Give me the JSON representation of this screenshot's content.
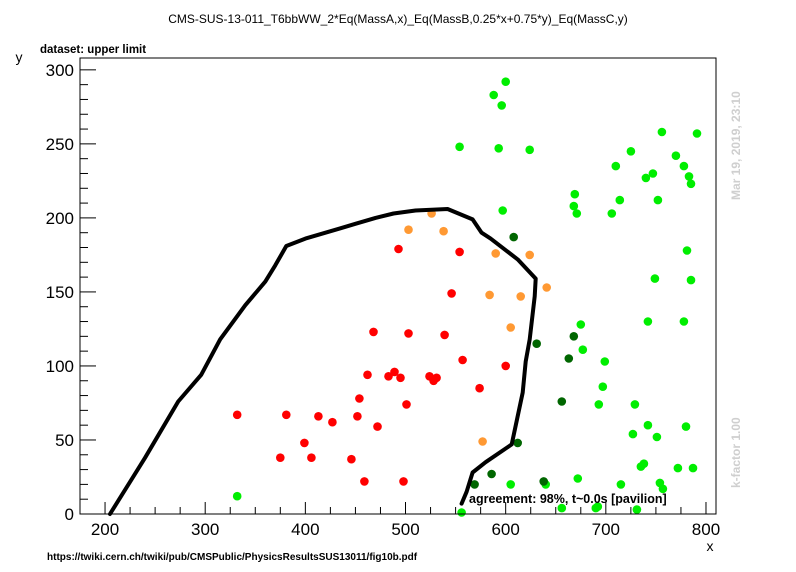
{
  "chart_data": {
    "type": "scatter",
    "title": "CMS-SUS-13-011_T6bbWW_2*Eq(MassA,x)_Eq(MassB,0.25*x+0.75*y)_Eq(MassC,y)",
    "dataset_label": "dataset: upper limit",
    "xlabel": "x",
    "ylabel": "y",
    "xlim": [
      175,
      810
    ],
    "ylim": [
      0,
      308
    ],
    "x_ticks": [
      200,
      300,
      400,
      500,
      600,
      700,
      800
    ],
    "y_ticks": [
      0,
      50,
      100,
      150,
      200,
      250,
      300
    ],
    "grid": false,
    "legend": "none",
    "annotation": "agreement: 98%, t~0.0s [pavilion]",
    "timestamp": "Mar 19, 2019, 23:10",
    "kfactor": "k-factor 1.00",
    "source_url": "https://twiki.cern.ch/twiki/pub/CMSPublic/PhysicsResultsSUS13011/fig10b.pdf",
    "colors": {
      "excluded": "#ff0000",
      "borderline": "#ff9933",
      "allowed": "#00ee00",
      "allowed_near": "#006600",
      "curve": "#000000"
    },
    "series": [
      {
        "color_key": "excluded",
        "points": [
          [
            332,
            67
          ],
          [
            375,
            38
          ],
          [
            381,
            67
          ],
          [
            399,
            48
          ],
          [
            406,
            38
          ],
          [
            413,
            66
          ],
          [
            427,
            62
          ],
          [
            446,
            37
          ],
          [
            452,
            66
          ],
          [
            454,
            78
          ],
          [
            459,
            22
          ],
          [
            462,
            94
          ],
          [
            468,
            123
          ],
          [
            472,
            59
          ],
          [
            483,
            93
          ],
          [
            489,
            96
          ],
          [
            495,
            92
          ],
          [
            498,
            22
          ],
          [
            501,
            74
          ],
          [
            503,
            122
          ],
          [
            493,
            179
          ],
          [
            524,
            93
          ],
          [
            528,
            90
          ],
          [
            531,
            92
          ],
          [
            539,
            121
          ],
          [
            546,
            149
          ],
          [
            554,
            177
          ],
          [
            557,
            104
          ],
          [
            574,
            85
          ],
          [
            600,
            100
          ]
        ]
      },
      {
        "color_key": "borderline",
        "points": [
          [
            526,
            203
          ],
          [
            503,
            192
          ],
          [
            538,
            191
          ],
          [
            590,
            176
          ],
          [
            584,
            148
          ],
          [
            605,
            126
          ],
          [
            615,
            147
          ],
          [
            624,
            175
          ],
          [
            641,
            153
          ],
          [
            577,
            49
          ]
        ]
      },
      {
        "color_key": "allowed",
        "points": [
          [
            332,
            12
          ],
          [
            554,
            248
          ],
          [
            556,
            1
          ],
          [
            588,
            283
          ],
          [
            593,
            247
          ],
          [
            596,
            276
          ],
          [
            600,
            292
          ],
          [
            597,
            205
          ],
          [
            605,
            20
          ],
          [
            624,
            246
          ],
          [
            640,
            20
          ],
          [
            656,
            4
          ],
          [
            668,
            208
          ],
          [
            669,
            216
          ],
          [
            671,
            203
          ],
          [
            672,
            24
          ],
          [
            675,
            128
          ],
          [
            677,
            111
          ],
          [
            690,
            4
          ],
          [
            692,
            5
          ],
          [
            693,
            74
          ],
          [
            697,
            86
          ],
          [
            699,
            103
          ],
          [
            706,
            203
          ],
          [
            710,
            235
          ],
          [
            714,
            212
          ],
          [
            715,
            20
          ],
          [
            725,
            245
          ],
          [
            727,
            54
          ],
          [
            729,
            74
          ],
          [
            731,
            3
          ],
          [
            735,
            32
          ],
          [
            738,
            34
          ],
          [
            740,
            227
          ],
          [
            742,
            60
          ],
          [
            742,
            130
          ],
          [
            747,
            230
          ],
          [
            749,
            159
          ],
          [
            752,
            212
          ],
          [
            751,
            52
          ],
          [
            754,
            21
          ],
          [
            756,
            258
          ],
          [
            757,
            17
          ],
          [
            770,
            242
          ],
          [
            772,
            31
          ],
          [
            778,
            235
          ],
          [
            778,
            130
          ],
          [
            780,
            59
          ],
          [
            781,
            178
          ],
          [
            783,
            228
          ],
          [
            785,
            223
          ],
          [
            785,
            158
          ],
          [
            787,
            31
          ],
          [
            791,
            257
          ]
        ]
      },
      {
        "color_key": "allowed_near",
        "points": [
          [
            569,
            20
          ],
          [
            586,
            27
          ],
          [
            608,
            187
          ],
          [
            612,
            48
          ],
          [
            631,
            115
          ],
          [
            638,
            22
          ],
          [
            656,
            76
          ],
          [
            663,
            105
          ],
          [
            668,
            120
          ]
        ]
      }
    ],
    "exclusion_curve": [
      [
        205,
        0
      ],
      [
        240,
        38
      ],
      [
        273,
        76
      ],
      [
        296,
        94
      ],
      [
        315,
        118
      ],
      [
        340,
        141
      ],
      [
        360,
        157
      ],
      [
        370,
        168
      ],
      [
        381,
        181
      ],
      [
        400,
        186
      ],
      [
        435,
        193
      ],
      [
        450,
        196
      ],
      [
        470,
        200
      ],
      [
        488,
        203
      ],
      [
        510,
        205
      ],
      [
        542,
        206
      ],
      [
        567,
        199
      ],
      [
        576,
        190
      ],
      [
        585,
        186
      ],
      [
        612,
        172
      ],
      [
        630,
        159
      ],
      [
        629,
        147
      ],
      [
        624,
        118
      ],
      [
        620,
        103
      ],
      [
        617,
        82
      ],
      [
        606,
        47
      ],
      [
        580,
        35
      ],
      [
        567,
        28
      ],
      [
        561,
        15
      ],
      [
        556,
        7
      ]
    ]
  }
}
